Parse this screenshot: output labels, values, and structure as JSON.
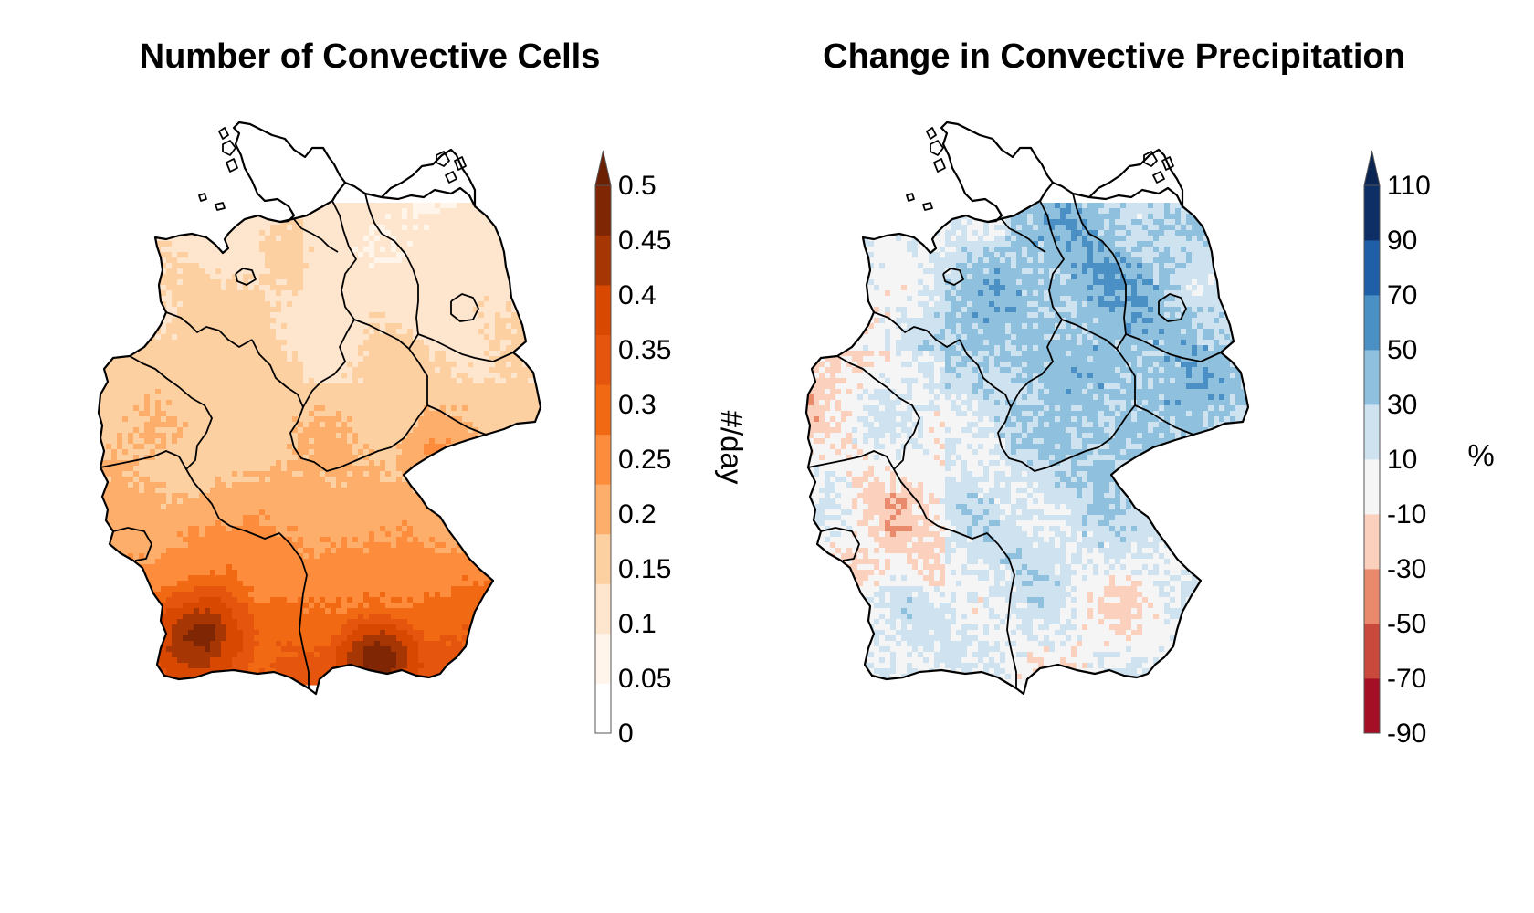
{
  "panels": [
    {
      "id": "cells",
      "title": "Number of Convective Cells",
      "colorbar": {
        "ticks": [
          "0",
          "0.05",
          "0.1",
          "0.15",
          "0.2",
          "0.25",
          "0.3",
          "0.35",
          "0.4",
          "0.45",
          "0.5"
        ],
        "unit": "#/day",
        "extend": "max",
        "colors": [
          "#ffffff",
          "#fff5eb",
          "#fee6ce",
          "#fdd0a2",
          "#fdae6b",
          "#fd8d3c",
          "#f16913",
          "#e6550d",
          "#d94801",
          "#a63603",
          "#7f2704"
        ],
        "extend_color": "#6b2004"
      }
    },
    {
      "id": "precip",
      "title": "Change in Convective Precipitation",
      "colorbar": {
        "ticks": [
          "-90",
          "-70",
          "-50",
          "-30",
          "-10",
          "10",
          "30",
          "50",
          "70",
          "90",
          "110"
        ],
        "unit": "%",
        "extend": "max",
        "colors": [
          "#a50f26",
          "#c94a3d",
          "#e88a6b",
          "#fbd0bd",
          "#f5f5f5",
          "#cfe2f0",
          "#8fc1de",
          "#4a90c4",
          "#1f5fa8",
          "#0d2f66"
        ],
        "extend_color": "#0b2552"
      }
    }
  ]
}
